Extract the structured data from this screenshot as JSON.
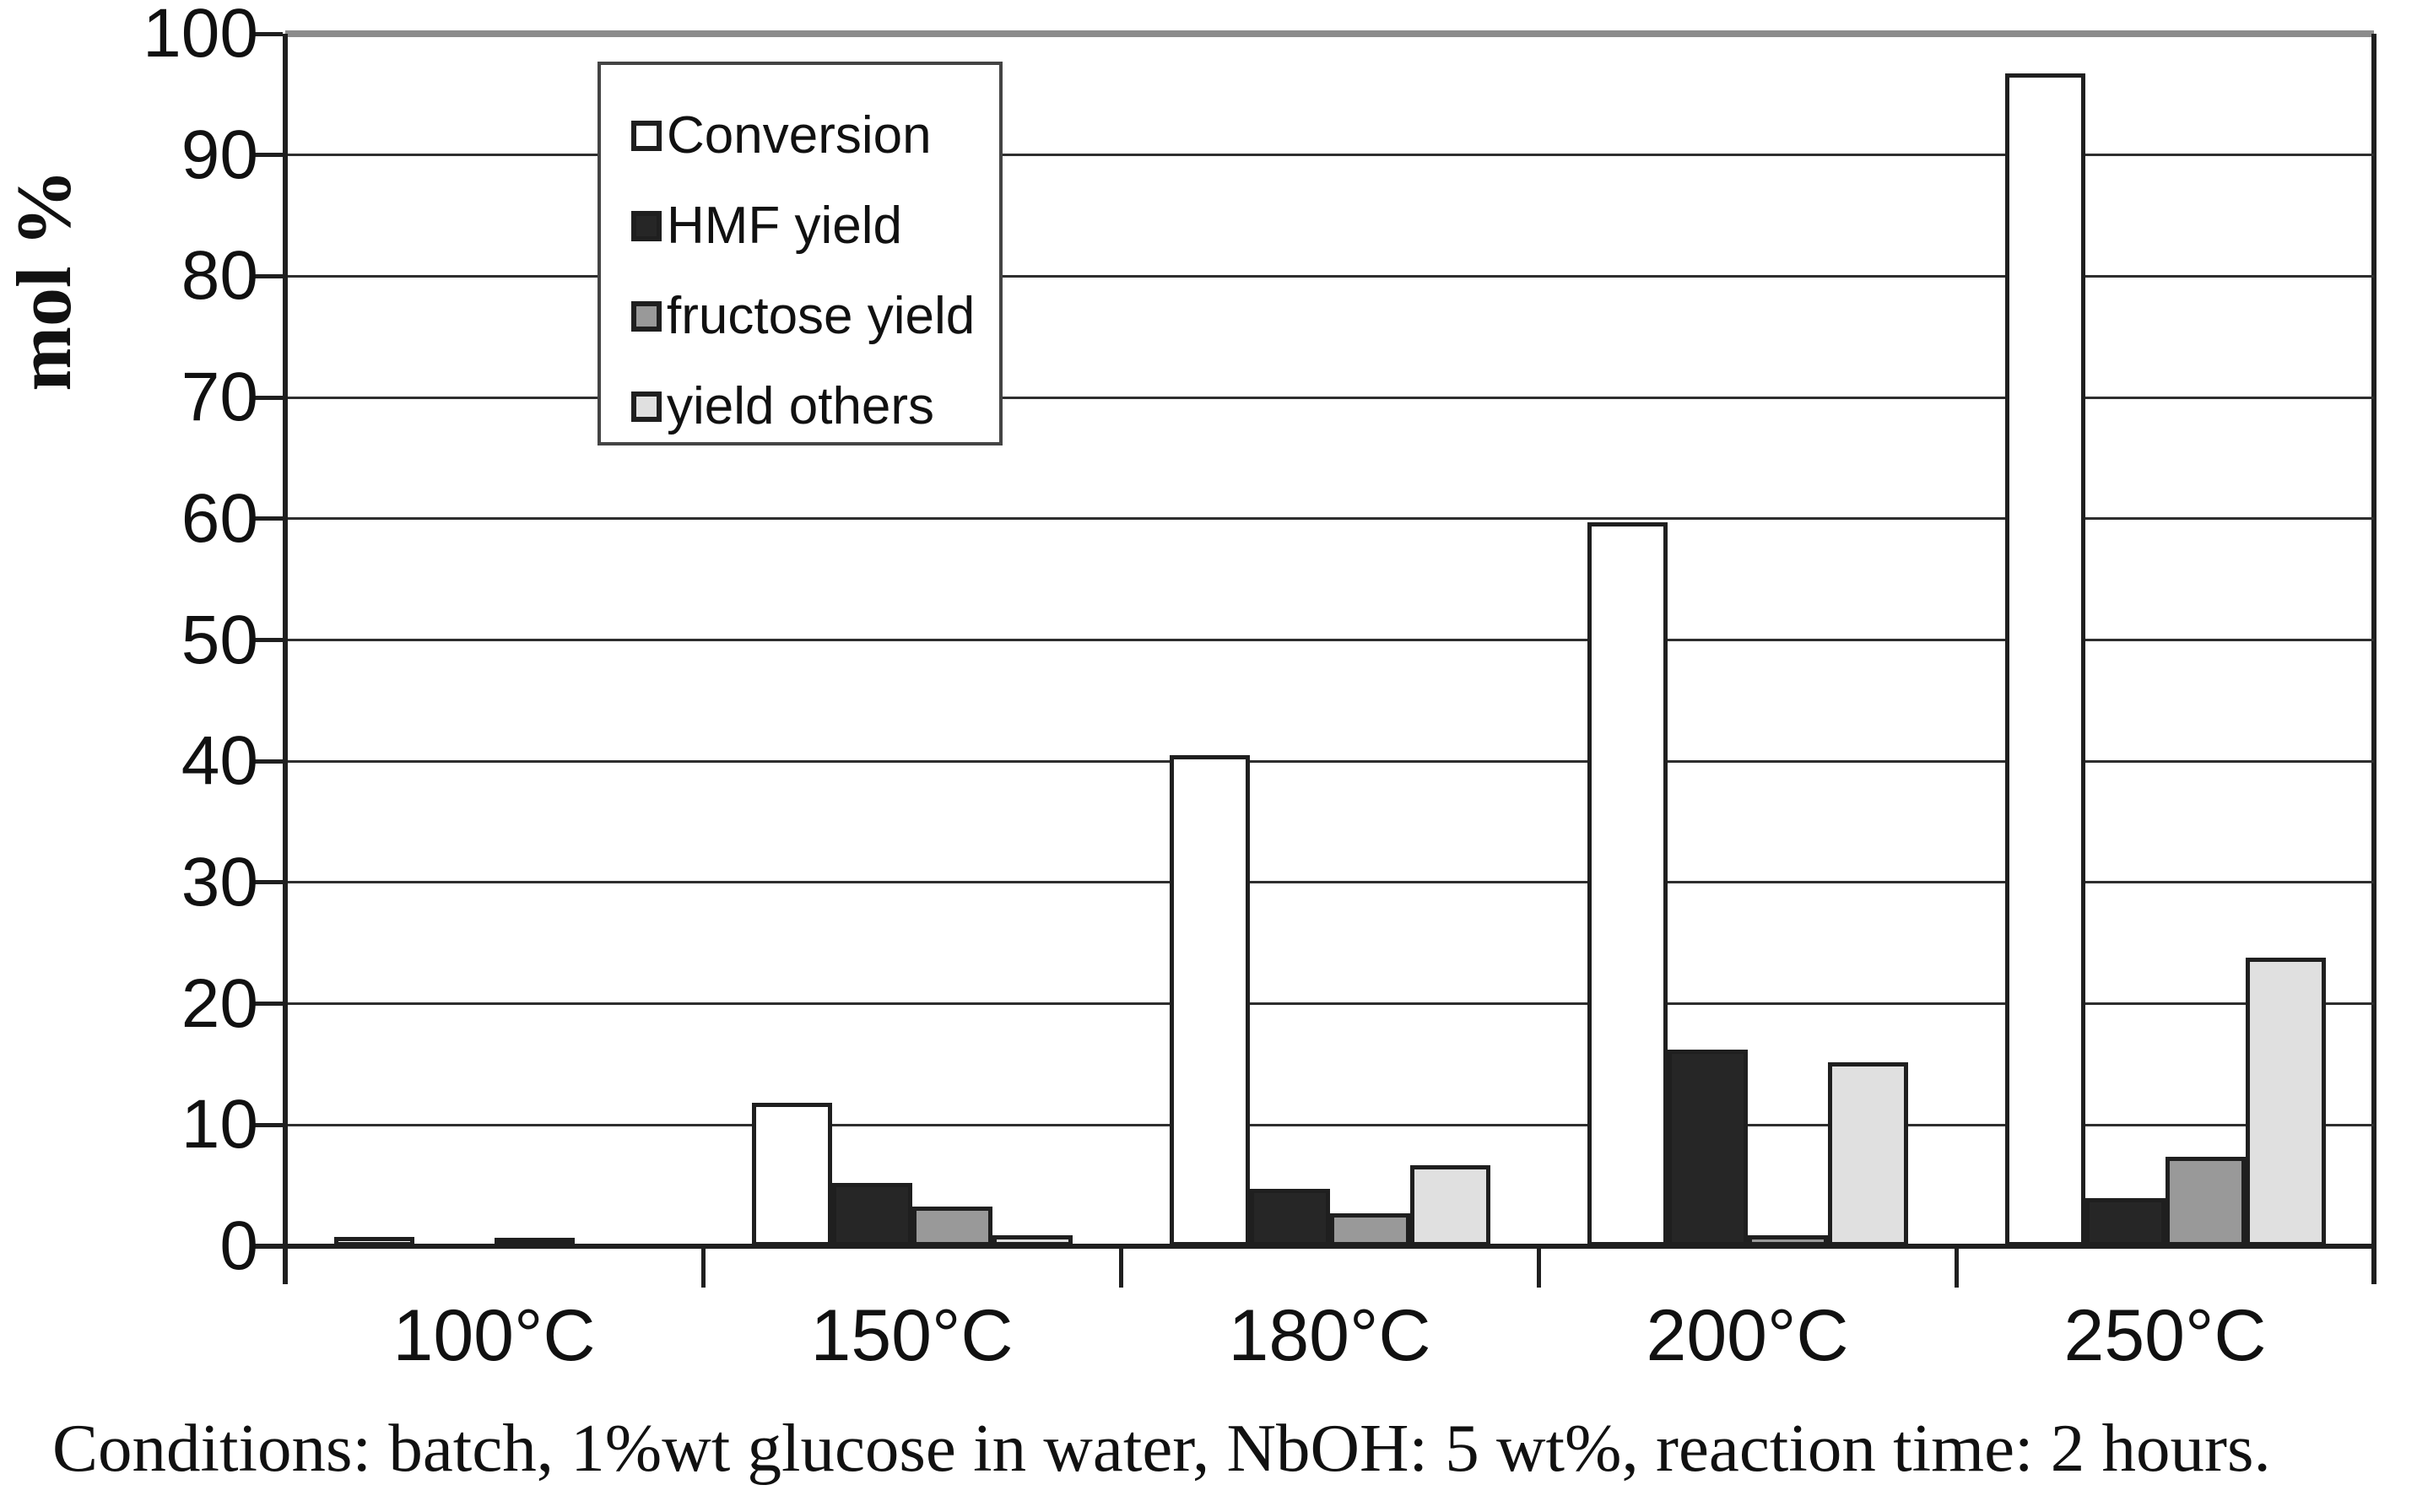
{
  "figure": {
    "y_axis_label": "mol %",
    "caption": "Conditions: batch, 1%wt glucose in water, NbOH: 5 wt%, reaction time: 2 hours."
  },
  "chart_data": {
    "type": "bar",
    "title": "",
    "xlabel": "",
    "ylabel": "mol %",
    "categories": [
      "100°C",
      "150°C",
      "180°C",
      "200°C",
      "250°C"
    ],
    "series": [
      {
        "name": "Conversion",
        "color": "#ffffff",
        "values": [
          0.8,
          11.8,
          40.5,
          59.7,
          96.7
        ]
      },
      {
        "name": "HMF yield",
        "color": "#262626",
        "values": [
          0,
          5.2,
          4.7,
          16.2,
          4.0
        ]
      },
      {
        "name": "fructose yield",
        "color": "#999999",
        "values": [
          0.7,
          3.3,
          2.7,
          0.9,
          7.4
        ]
      },
      {
        "name": "yield others",
        "color": "#e0e0e0",
        "values": [
          0,
          0.9,
          6.7,
          15.2,
          23.8
        ]
      }
    ],
    "ylim": [
      0,
      100
    ],
    "ytick_step": 10,
    "grid": true,
    "legend_position": "top-left-inside",
    "bar_outline_color": "#1f1f1f"
  }
}
